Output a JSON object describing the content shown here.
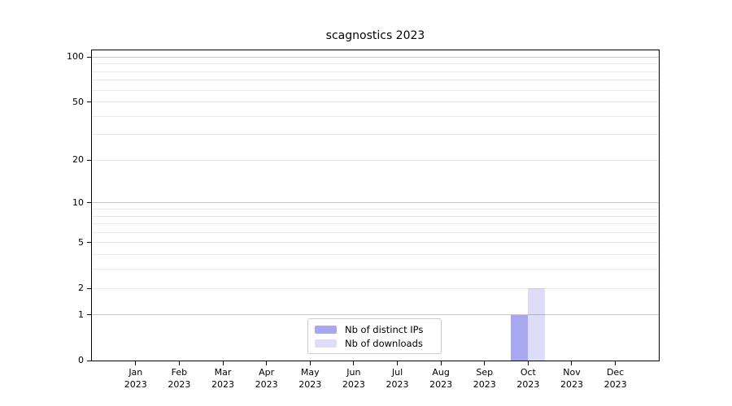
{
  "chart_data": {
    "type": "bar",
    "title": "scagnostics 2023",
    "categories": [
      {
        "month": "Jan",
        "year": "2023"
      },
      {
        "month": "Feb",
        "year": "2023"
      },
      {
        "month": "Mar",
        "year": "2023"
      },
      {
        "month": "Apr",
        "year": "2023"
      },
      {
        "month": "May",
        "year": "2023"
      },
      {
        "month": "Jun",
        "year": "2023"
      },
      {
        "month": "Jul",
        "year": "2023"
      },
      {
        "month": "Aug",
        "year": "2023"
      },
      {
        "month": "Sep",
        "year": "2023"
      },
      {
        "month": "Oct",
        "year": "2023"
      },
      {
        "month": "Nov",
        "year": "2023"
      },
      {
        "month": "Dec",
        "year": "2023"
      }
    ],
    "series": [
      {
        "name": "Nb of distinct IPs",
        "color": "rgba(70,70,225,0.47)",
        "values": [
          0,
          0,
          0,
          0,
          0,
          0,
          0,
          0,
          0,
          1,
          0,
          0
        ]
      },
      {
        "name": "Nb of downloads",
        "color": "rgba(70,70,225,0.185)",
        "values": [
          0,
          0,
          0,
          0,
          0,
          0,
          0,
          0,
          0,
          2,
          0,
          0
        ]
      }
    ],
    "yscale": "log1p",
    "ylim": [
      0,
      110.7
    ],
    "yticks": [
      0,
      1,
      2,
      5,
      10,
      20,
      50,
      100
    ],
    "y_major_gridlines": [
      1,
      10,
      100
    ],
    "y_minor_gridlines": [
      2,
      3,
      4,
      5,
      6,
      7,
      8,
      9,
      20,
      30,
      40,
      50,
      60,
      70,
      80,
      90
    ],
    "grid": true,
    "legend_position": "lower center"
  },
  "colors": {
    "background": "#ffffff",
    "axis": "#000000",
    "major_grid": "#c9c9c9",
    "minor_grid": "#e9e9e9",
    "legend_border": "#cccccc",
    "text": "#000000"
  }
}
